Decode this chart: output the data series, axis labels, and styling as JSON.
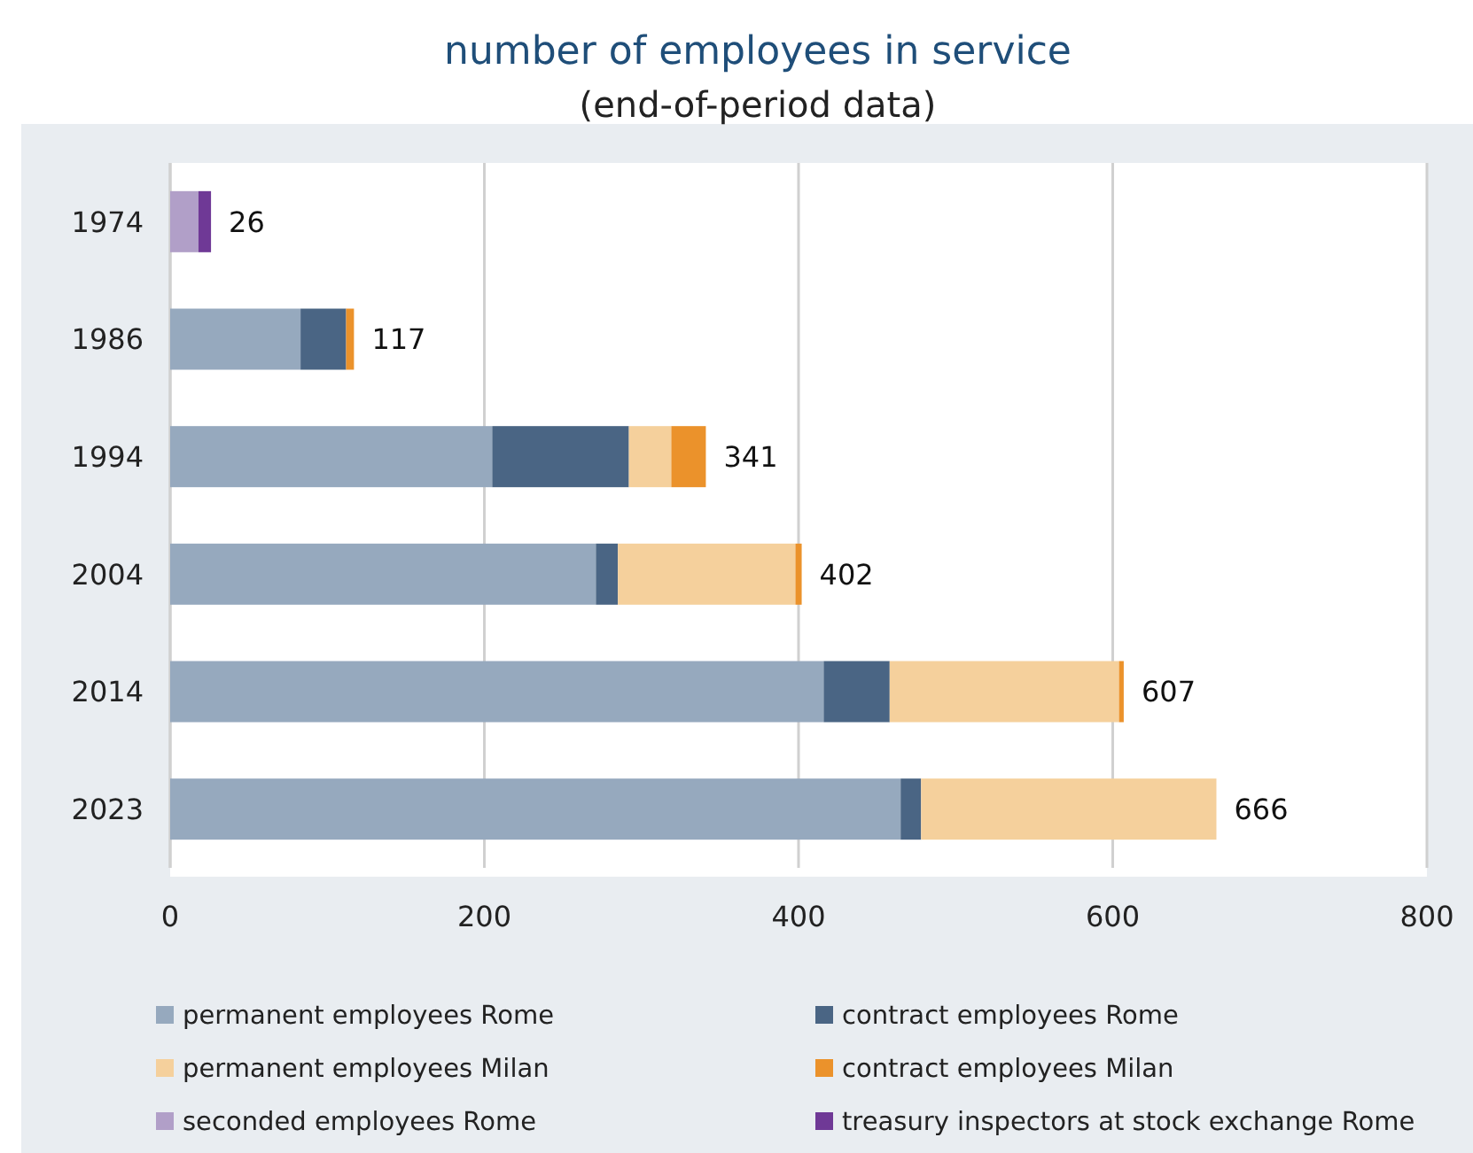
{
  "chart_data": {
    "type": "bar",
    "orientation": "horizontal",
    "stacked": true,
    "title": "number of employees in service",
    "subtitle": "(end-of-period data)",
    "categories": [
      "1974",
      "1986",
      "1994",
      "2004",
      "2014",
      "2023"
    ],
    "series": [
      {
        "name": "permanent employees Rome",
        "color": "#96a9be",
        "values": [
          0,
          83,
          205,
          271,
          416,
          465
        ]
      },
      {
        "name": "contract employees Rome",
        "color": "#4a6584",
        "values": [
          0,
          29,
          87,
          14,
          42,
          13
        ]
      },
      {
        "name": "permanent employees Milan",
        "color": "#f5d09c",
        "values": [
          0,
          0,
          27,
          113,
          146,
          188
        ]
      },
      {
        "name": "contract employees Milan",
        "color": "#eb922b",
        "values": [
          0,
          5,
          22,
          4,
          3,
          0
        ]
      },
      {
        "name": "seconded employees Rome",
        "color": "#b19fc8",
        "values": [
          18,
          0,
          0,
          0,
          0,
          0
        ]
      },
      {
        "name": "treasury inspectors at stock exchange Rome",
        "color": "#6f3996",
        "values": [
          8,
          0,
          0,
          0,
          0,
          0
        ]
      }
    ],
    "totals": [
      "26",
      "117",
      "341",
      "402",
      "607",
      "666"
    ],
    "xlim": [
      0,
      800
    ],
    "xticks": [
      0,
      200,
      400,
      600,
      800
    ],
    "grid": "x",
    "legend": "bottom"
  }
}
